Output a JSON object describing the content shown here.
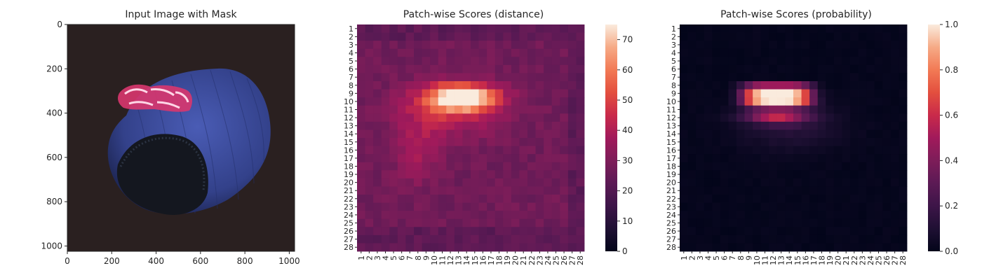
{
  "chart_data": [
    {
      "type": "image",
      "title": "Input Image with Mask",
      "x_ticks": [
        "0",
        "200",
        "400",
        "600",
        "800",
        "1000"
      ],
      "y_ticks": [
        "0",
        "200",
        "400",
        "600",
        "800",
        "1000"
      ],
      "xlim": [
        0,
        1024
      ],
      "ylim": [
        1024,
        0
      ],
      "image_description_colors": {
        "background": "#2a2020",
        "object": "#3f4f9c",
        "mask": "#ff6aa0"
      }
    },
    {
      "type": "heatmap",
      "title": "Patch-wise Scores (distance)",
      "rows": 28,
      "cols": 28,
      "row_labels": [
        "1",
        "2",
        "3",
        "4",
        "5",
        "6",
        "7",
        "8",
        "9",
        "10",
        "11",
        "12",
        "13",
        "14",
        "15",
        "16",
        "17",
        "18",
        "19",
        "20",
        "21",
        "22",
        "23",
        "24",
        "25",
        "26",
        "27",
        "28"
      ],
      "col_labels": [
        "1",
        "2",
        "3",
        "4",
        "5",
        "6",
        "7",
        "8",
        "9",
        "10",
        "11",
        "12",
        "13",
        "14",
        "15",
        "16",
        "17",
        "18",
        "19",
        "20",
        "21",
        "22",
        "23",
        "24",
        "25",
        "26",
        "27",
        "28"
      ],
      "value_range": [
        0,
        75
      ],
      "colorbar_ticks": [
        "0",
        "10",
        "20",
        "30",
        "40",
        "50",
        "60",
        "70"
      ],
      "colormap": "rocket",
      "description": "high region centred near row 9-10, column 13-14 (max ~75); background ~25-30"
    },
    {
      "type": "heatmap",
      "title": "Patch-wise Scores (probability)",
      "rows": 28,
      "cols": 28,
      "row_labels": [
        "1",
        "2",
        "3",
        "4",
        "5",
        "6",
        "7",
        "8",
        "9",
        "10",
        "11",
        "12",
        "13",
        "14",
        "15",
        "16",
        "17",
        "18",
        "19",
        "20",
        "21",
        "22",
        "23",
        "24",
        "25",
        "26",
        "27",
        "28"
      ],
      "col_labels": [
        "1",
        "2",
        "3",
        "4",
        "5",
        "6",
        "7",
        "8",
        "9",
        "10",
        "11",
        "12",
        "13",
        "14",
        "15",
        "16",
        "17",
        "18",
        "19",
        "20",
        "21",
        "22",
        "23",
        "24",
        "25",
        "26",
        "27",
        "28"
      ],
      "value_range": [
        0,
        1
      ],
      "colorbar_ticks": [
        "0.0",
        "0.2",
        "0.4",
        "0.6",
        "0.8",
        "1.0"
      ],
      "colormap": "rocket",
      "description": "values ~1.0 at rows 8-10, columns 8-17; falls to ~0 elsewhere"
    }
  ]
}
